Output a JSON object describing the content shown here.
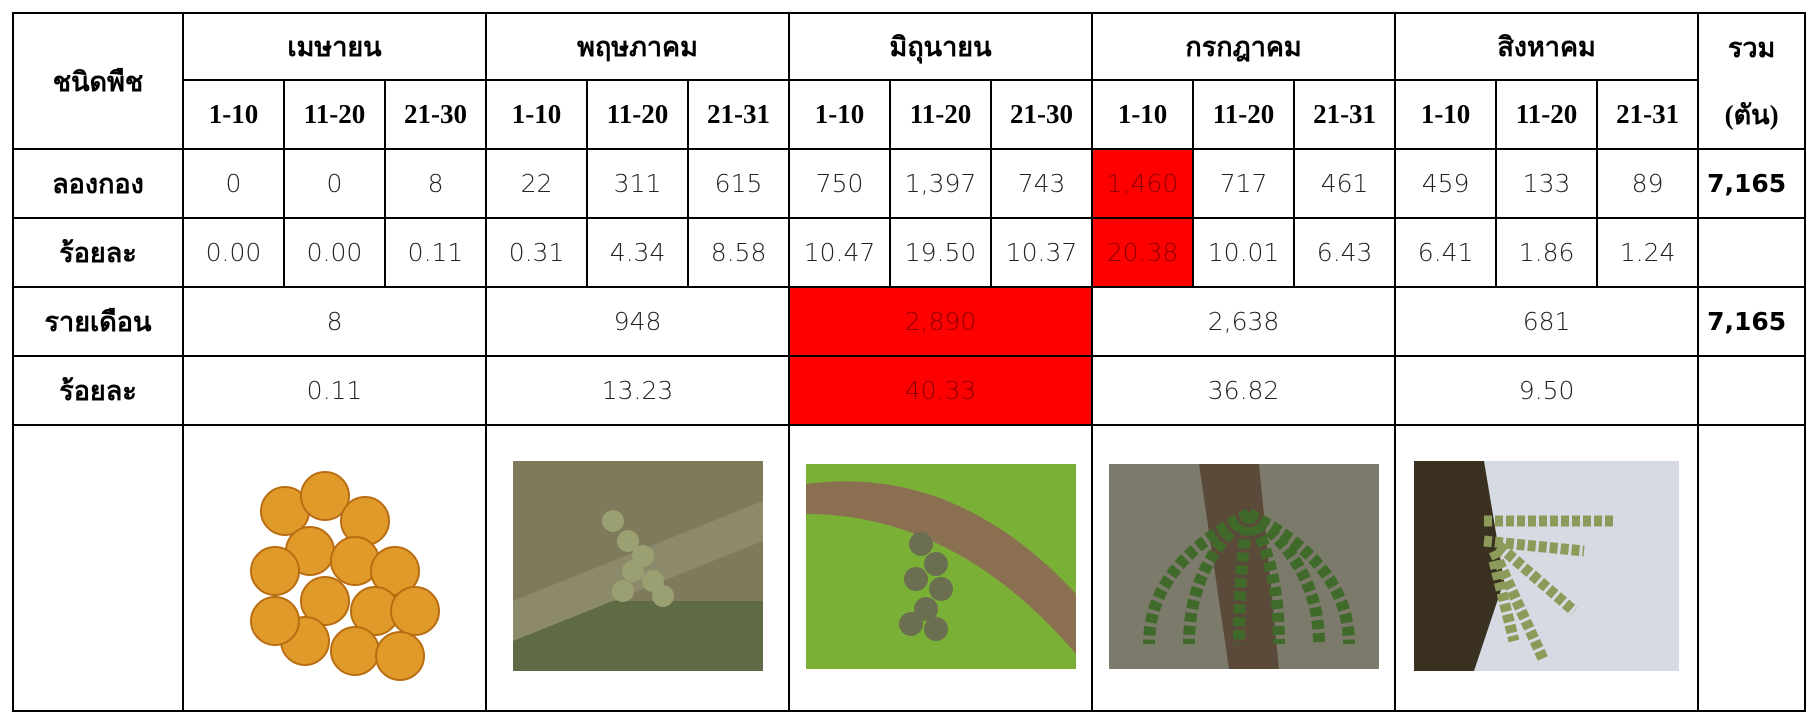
{
  "header": {
    "crop": "ชนิดพืช",
    "months": [
      {
        "name": "เมษายน",
        "periods": [
          "1-10",
          "11-20",
          "21-30"
        ]
      },
      {
        "name": "พฤษภาคม",
        "periods": [
          "1-10",
          "11-20",
          "21-31"
        ]
      },
      {
        "name": "มิถุนายน",
        "periods": [
          "1-10",
          "11-20",
          "21-30"
        ]
      },
      {
        "name": "กรกฎาคม",
        "periods": [
          "1-10",
          "11-20",
          "21-31"
        ]
      },
      {
        "name": "สิงหาคม",
        "periods": [
          "1-10",
          "11-20",
          "21-31"
        ]
      }
    ],
    "total": "รวม",
    "total_unit": "(ตัน)"
  },
  "table": {
    "rows": [
      {
        "label": "ลองกอง",
        "values": [
          "0",
          "0",
          "8",
          "22",
          "311",
          "615",
          "750",
          "1,397",
          "743",
          "1,460",
          "717",
          "461",
          "459",
          "133",
          "89"
        ],
        "total": "7,165"
      },
      {
        "label": "ร้อยละ",
        "values": [
          "0.00",
          "0.00",
          "0.11",
          "0.31",
          "4.34",
          "8.58",
          "10.47",
          "19.50",
          "10.37",
          "20.38",
          "10.01",
          "6.43",
          "6.41",
          "1.86",
          "1.24"
        ]
      }
    ],
    "monthly": [
      {
        "label": "รายเดือน",
        "values": [
          "8",
          "948",
          "2,890",
          "2,638",
          "681"
        ],
        "total": "7,165"
      },
      {
        "label": "ร้อยละ",
        "values": [
          "0.11",
          "13.23",
          "40.33",
          "36.82",
          "9.50"
        ]
      }
    ]
  }
}
